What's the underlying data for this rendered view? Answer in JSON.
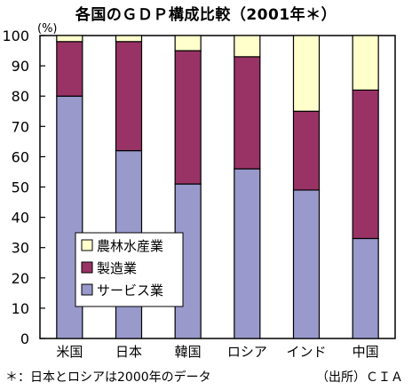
{
  "title": "各国のＧＤＰ構成比較（2001年＊）",
  "footnote": "＊：日本とロシアは2000年のデータ",
  "source": "（出所）ＣＩＡ",
  "chart_data": {
    "type": "bar",
    "stacked": true,
    "ylabel": "(%)",
    "ylim": [
      0,
      100
    ],
    "yticks": [
      0,
      10,
      20,
      30,
      40,
      50,
      60,
      70,
      80,
      90,
      100
    ],
    "grid": false,
    "legend_position": "bottom-left",
    "categories": [
      "米国",
      "日本",
      "韓国",
      "ロシア",
      "インド",
      "中国"
    ],
    "series": [
      {
        "name": "サービス業",
        "color": "#9999cc",
        "values": [
          80,
          62,
          51,
          56,
          49,
          33
        ]
      },
      {
        "name": "製造業",
        "color": "#993366",
        "values": [
          18,
          36,
          44,
          37,
          26,
          49
        ]
      },
      {
        "name": "農林水産業",
        "color": "#ffffcc",
        "values": [
          2,
          2,
          5,
          7,
          25,
          18
        ]
      }
    ],
    "legend_order": [
      "農林水産業",
      "製造業",
      "サービス業"
    ]
  }
}
